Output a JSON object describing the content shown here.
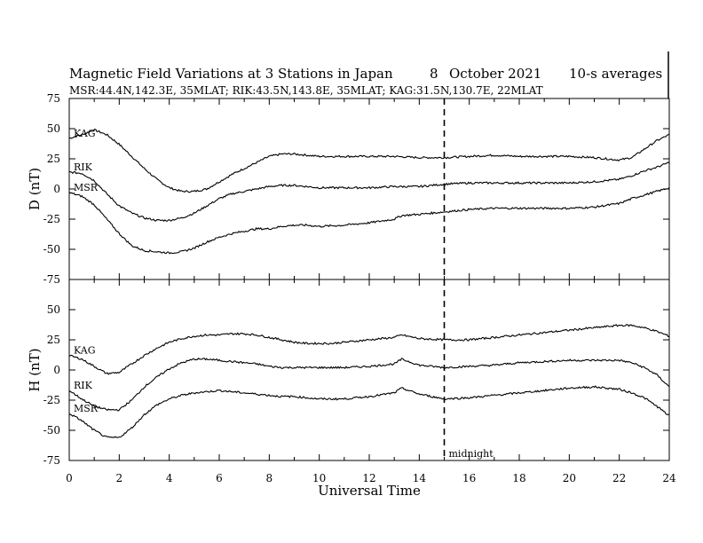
{
  "header": {
    "title": "Magnetic Field Variations at 3 Stations in Japan",
    "date_day": "8",
    "date_month_year": "October 2021",
    "averaging": "10-s averages",
    "stations_info": "MSR:44.4N,142.3E, 35MLAT;  RIK:43.5N,143.8E, 35MLAT;  KAG:31.5N,130.7E, 22MLAT"
  },
  "chart_data": [
    {
      "type": "line",
      "ylabel": "D (nT)",
      "ylim": [
        -75,
        75
      ],
      "yticks": [
        -75,
        -50,
        -25,
        0,
        25,
        50,
        75
      ],
      "xlim": [
        0,
        24
      ],
      "series": [
        {
          "name": "KAG",
          "x": [
            0,
            0.5,
            1,
            1.5,
            2,
            2.5,
            3,
            3.5,
            4,
            4.5,
            5,
            5.5,
            6,
            6.5,
            7,
            7.5,
            8,
            8.5,
            9,
            9.5,
            10,
            11,
            12,
            13,
            14,
            15,
            16,
            17,
            18,
            19,
            20,
            21,
            22,
            22.5,
            23,
            23.5,
            24
          ],
          "values": [
            42,
            45,
            49,
            45,
            37,
            27,
            17,
            8,
            1,
            -2,
            -2,
            0,
            6,
            12,
            17,
            22,
            27,
            29,
            29,
            28,
            27,
            27,
            27,
            27,
            26,
            26,
            27,
            28,
            27,
            27,
            27,
            26,
            24,
            26,
            33,
            40,
            45
          ]
        },
        {
          "name": "RIK",
          "x": [
            0,
            0.5,
            1,
            1.5,
            2,
            2.5,
            3,
            3.5,
            4,
            4.5,
            5,
            5.5,
            6,
            6.5,
            7,
            7.5,
            8,
            8.5,
            9,
            9.5,
            10,
            11,
            12,
            13,
            14,
            15,
            16,
            17,
            18,
            19,
            20,
            21,
            22,
            22.5,
            23,
            23.5,
            24
          ],
          "values": [
            14,
            13,
            7,
            -4,
            -14,
            -20,
            -24,
            -26,
            -26,
            -24,
            -20,
            -14,
            -8,
            -4,
            -2,
            0,
            2,
            3,
            3,
            2,
            1,
            1,
            1,
            2,
            2,
            4,
            5,
            5,
            5,
            5,
            5,
            6,
            8,
            11,
            15,
            18,
            22
          ]
        },
        {
          "name": "MSR",
          "x": [
            0,
            0.5,
            1,
            1.5,
            2,
            2.5,
            3,
            3.5,
            4,
            4.5,
            5,
            5.5,
            6,
            6.5,
            7,
            7.5,
            8,
            8.5,
            9,
            9.5,
            10,
            11,
            12,
            13,
            13.3,
            14,
            15,
            16,
            17,
            18,
            19,
            20,
            21,
            22,
            22.5,
            23,
            23.5,
            24
          ],
          "values": [
            -3,
            -6,
            -13,
            -25,
            -37,
            -47,
            -51,
            -52,
            -53,
            -52,
            -49,
            -44,
            -40,
            -37,
            -35,
            -33,
            -33,
            -31,
            -30,
            -30,
            -31,
            -30,
            -28,
            -25,
            -22,
            -21,
            -19,
            -17,
            -16,
            -16,
            -16,
            -16,
            -15,
            -12,
            -8,
            -5,
            -2,
            1
          ]
        }
      ]
    },
    {
      "type": "line",
      "ylabel": "H (nT)",
      "ylim": [
        -75,
        75
      ],
      "yticks": [
        -75,
        -50,
        -25,
        0,
        25,
        50
      ],
      "xlim": [
        0,
        24
      ],
      "xticks": [
        0,
        2,
        4,
        6,
        8,
        10,
        12,
        14,
        16,
        18,
        20,
        22,
        24
      ],
      "xlabel": "Universal Time",
      "annotation": "midnight",
      "midnight_x": 15,
      "series": [
        {
          "name": "KAG",
          "x": [
            0,
            0.5,
            1,
            1.5,
            2,
            2.5,
            3,
            3.5,
            4,
            4.5,
            5,
            5.5,
            6,
            6.5,
            7,
            7.5,
            8,
            8.5,
            9,
            9.5,
            10,
            10.5,
            11,
            12,
            13,
            13.3,
            14,
            15,
            16,
            17,
            18,
            19,
            20,
            21,
            22,
            22.5,
            23,
            23.5,
            24
          ],
          "values": [
            12,
            9,
            3,
            -3,
            -2,
            5,
            12,
            18,
            23,
            26,
            28,
            29,
            29,
            30,
            30,
            29,
            27,
            25,
            23,
            22,
            22,
            22,
            23,
            25,
            27,
            29,
            26,
            25,
            25,
            27,
            29,
            31,
            33,
            35,
            37,
            37,
            35,
            32,
            28
          ]
        },
        {
          "name": "RIK",
          "x": [
            0,
            0.5,
            1,
            1.5,
            2,
            2.5,
            3,
            3.5,
            4,
            4.5,
            5,
            5.5,
            6,
            6.5,
            7,
            7.5,
            8,
            8.5,
            9,
            9.5,
            10,
            10.5,
            11,
            12,
            13,
            13.3,
            14,
            15,
            16,
            17,
            18,
            19,
            20,
            21,
            22,
            22.5,
            23,
            23.5,
            24
          ],
          "values": [
            -17,
            -24,
            -30,
            -33,
            -33,
            -25,
            -14,
            -6,
            1,
            6,
            9,
            9,
            8,
            7,
            6,
            5,
            3,
            2,
            2,
            2,
            2,
            2,
            2,
            3,
            5,
            9,
            4,
            2,
            3,
            4,
            6,
            7,
            8,
            8,
            8,
            6,
            2,
            -4,
            -14
          ]
        },
        {
          "name": "MSR",
          "x": [
            0,
            0.5,
            1,
            1.5,
            2,
            2.5,
            3,
            3.5,
            4,
            4.5,
            5,
            5.5,
            6,
            6.5,
            7,
            7.5,
            8,
            8.5,
            9,
            9.5,
            10,
            10.5,
            11,
            12,
            13,
            13.3,
            14,
            15,
            16,
            17,
            18,
            19,
            20,
            21,
            22,
            22.5,
            23,
            23.5,
            24
          ],
          "values": [
            -36,
            -42,
            -50,
            -56,
            -56,
            -48,
            -37,
            -29,
            -24,
            -21,
            -19,
            -18,
            -17,
            -18,
            -19,
            -20,
            -21,
            -22,
            -22,
            -23,
            -24,
            -24,
            -24,
            -22,
            -19,
            -15,
            -20,
            -24,
            -23,
            -21,
            -19,
            -17,
            -15,
            -14,
            -16,
            -19,
            -23,
            -30,
            -38
          ]
        }
      ]
    }
  ]
}
